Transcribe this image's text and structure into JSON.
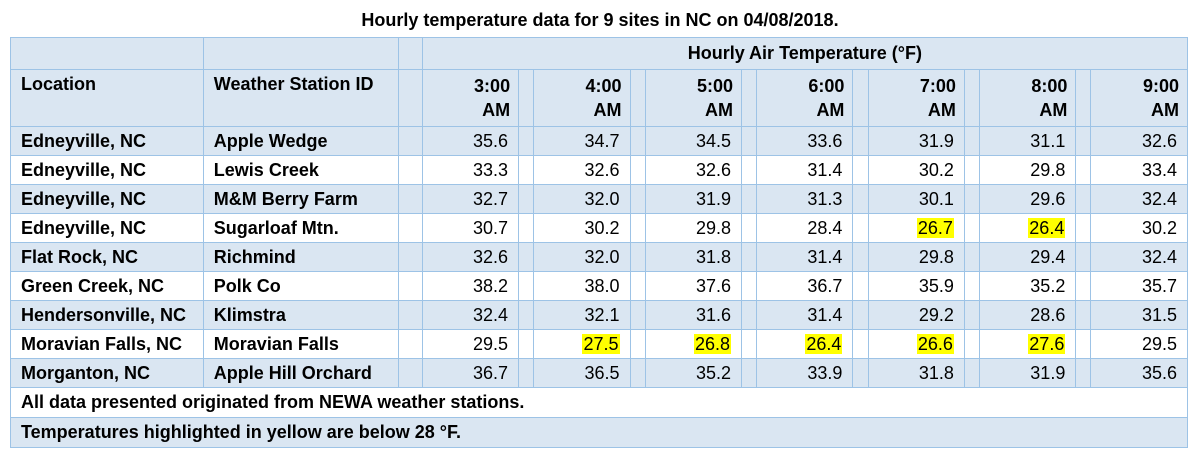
{
  "caption": "Hourly temperature data for 9 sites in NC on 04/08/2018.",
  "group_header": "Hourly Air Temperature (°F)",
  "columns": {
    "location": "Location",
    "station": "Weather Station ID",
    "hours": [
      [
        "3:00",
        "AM"
      ],
      [
        "4:00",
        "AM"
      ],
      [
        "5:00",
        "AM"
      ],
      [
        "6:00",
        "AM"
      ],
      [
        "7:00",
        "AM"
      ],
      [
        "8:00",
        "AM"
      ],
      [
        "9:00",
        "AM"
      ]
    ]
  },
  "rows": [
    {
      "location": "Edneyville, NC",
      "station": "Apple Wedge",
      "temps": [
        "35.6",
        "34.7",
        "34.5",
        "33.6",
        "31.9",
        "31.1",
        "32.6"
      ]
    },
    {
      "location": "Edneyville, NC",
      "station": "Lewis Creek",
      "temps": [
        "33.3",
        "32.6",
        "32.6",
        "31.4",
        "30.2",
        "29.8",
        "33.4"
      ]
    },
    {
      "location": "Edneyville, NC",
      "station": "M&M Berry Farm",
      "temps": [
        "32.7",
        "32.0",
        "31.9",
        "31.3",
        "30.1",
        "29.6",
        "32.4"
      ]
    },
    {
      "location": "Edneyville, NC",
      "station": "Sugarloaf Mtn.",
      "temps": [
        "30.7",
        "30.2",
        "29.8",
        "28.4",
        "26.7",
        "26.4",
        "30.2"
      ]
    },
    {
      "location": "Flat Rock, NC",
      "station": "Richmind",
      "temps": [
        "32.6",
        "32.0",
        "31.8",
        "31.4",
        "29.8",
        "29.4",
        "32.4"
      ]
    },
    {
      "location": "Green Creek, NC",
      "station": "Polk Co",
      "temps": [
        "38.2",
        "38.0",
        "37.6",
        "36.7",
        "35.9",
        "35.2",
        "35.7"
      ]
    },
    {
      "location": "Hendersonville, NC",
      "station": "Klimstra",
      "temps": [
        "32.4",
        "32.1",
        "31.6",
        "31.4",
        "29.2",
        "28.6",
        "31.5"
      ]
    },
    {
      "location": "Moravian Falls, NC",
      "station": "Moravian Falls",
      "temps": [
        "29.5",
        "27.5",
        "26.8",
        "26.4",
        "26.6",
        "27.6",
        "29.5"
      ]
    },
    {
      "location": "Morganton, NC",
      "station": "Apple Hill Orchard",
      "temps": [
        "36.7",
        "36.5",
        "35.2",
        "33.9",
        "31.8",
        "31.9",
        "35.6"
      ]
    }
  ],
  "highlight_threshold_f": 28,
  "highlight_color": "#ffff00",
  "notes": [
    "All data presented originated from NEWA weather stations.",
    "Temperatures highlighted in yellow are below 28 °F."
  ]
}
